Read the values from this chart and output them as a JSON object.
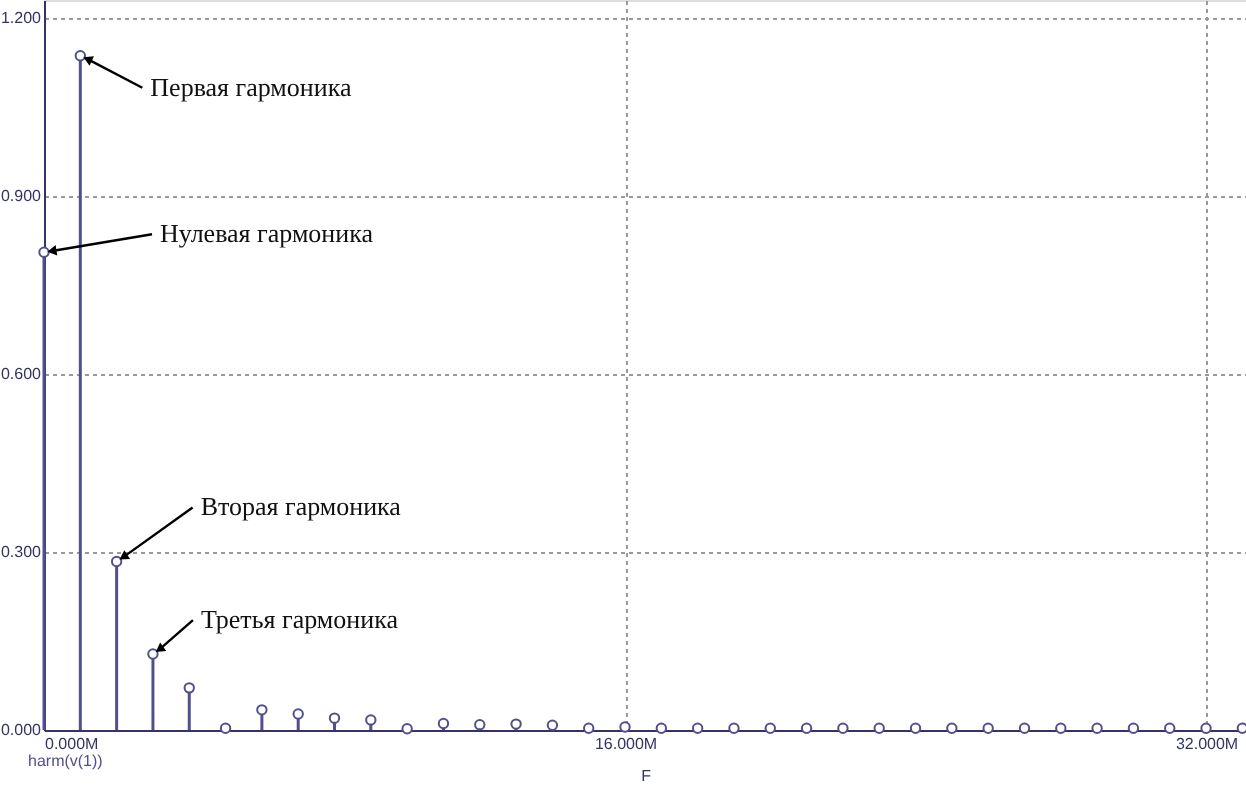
{
  "chart_data": {
    "type": "lollipop",
    "xlabel": "F",
    "legend": "bottom left",
    "grid": true,
    "marker": "circle",
    "x": [
      0,
      1,
      2,
      3,
      4,
      5,
      6,
      7,
      8,
      9,
      10,
      11,
      12,
      13,
      14,
      15,
      16,
      17,
      18,
      19,
      20,
      21,
      22,
      23,
      24,
      25,
      26,
      27,
      28,
      29,
      30,
      31,
      32,
      33
    ],
    "series": [
      {
        "name": "harm(v(1))",
        "color": "#50508c",
        "values": [
          0.805,
          1.136,
          0.284,
          0.128,
          0.071,
          0.003,
          0.034,
          0.027,
          0.02,
          0.017,
          0.002,
          0.011,
          0.009,
          0.01,
          0.008,
          0.003,
          0.005,
          0.003,
          0.003,
          0.003,
          0.003,
          0.003,
          0.003,
          0.003,
          0.003,
          0.003,
          0.003,
          0.003,
          0.003,
          0.003,
          0.003,
          0.003,
          0.003,
          0.003
        ]
      }
    ],
    "xlim": [
      0,
      33.1
    ],
    "xticks": [
      {
        "value": 0,
        "label": "0.000M"
      },
      {
        "value": 16,
        "label": "16.000M"
      },
      {
        "value": 32,
        "label": "32.000M"
      }
    ],
    "ylim": [
      0,
      1.23
    ],
    "yticks": [
      {
        "value": 0,
        "label": "0.000"
      },
      {
        "value": 0.3,
        "label": "0.300"
      },
      {
        "value": 0.6,
        "label": "0.600"
      },
      {
        "value": 0.9,
        "label": "0.900"
      },
      {
        "value": 1.2,
        "label": "1.200"
      }
    ],
    "annotations": [
      {
        "text": "Нулевая гармоника",
        "x": 0,
        "y": 0.805
      },
      {
        "text": "Первая гармоника",
        "x": 1,
        "y": 1.136
      },
      {
        "text": "Вторая гармоника",
        "x": 2,
        "y": 0.284
      },
      {
        "text": "Третья гармоника",
        "x": 3,
        "y": 0.128
      }
    ]
  }
}
